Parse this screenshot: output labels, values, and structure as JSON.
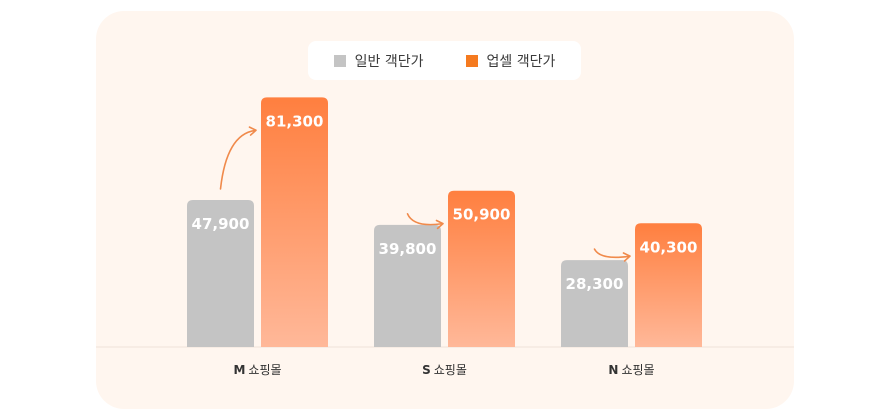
{
  "legend": {
    "items": [
      {
        "label": "일반 객단가",
        "color": "#c4c4c4"
      },
      {
        "label": "업셀 객단가",
        "color": "#f57a1f"
      }
    ]
  },
  "colors": {
    "panel_bg": "#fff6ef",
    "base_bar": "#c4c4c4",
    "upsell_top": "#ff7f3f",
    "upsell_bottom": "#ffb899",
    "arrow": "#f08a4b"
  },
  "chart_data": {
    "type": "bar",
    "categories": [
      {
        "prefix": "M",
        "suffix": "쇼핑몰"
      },
      {
        "prefix": "S",
        "suffix": "쇼핑몰"
      },
      {
        "prefix": "N",
        "suffix": "쇼핑몰"
      }
    ],
    "series": [
      {
        "name": "일반 객단가",
        "values": [
          47900,
          39800,
          28300
        ],
        "labels": [
          "47,900",
          "39,800",
          "28,300"
        ]
      },
      {
        "name": "업셀 객단가",
        "values": [
          81300,
          50900,
          40300
        ],
        "labels": [
          "81,300",
          "50,900",
          "40,300"
        ]
      }
    ],
    "ylim": [
      0,
      100000
    ],
    "grid": false,
    "legend_position": "top-center",
    "annotations": "curved arrow from base bar to upsell bar in each group"
  }
}
